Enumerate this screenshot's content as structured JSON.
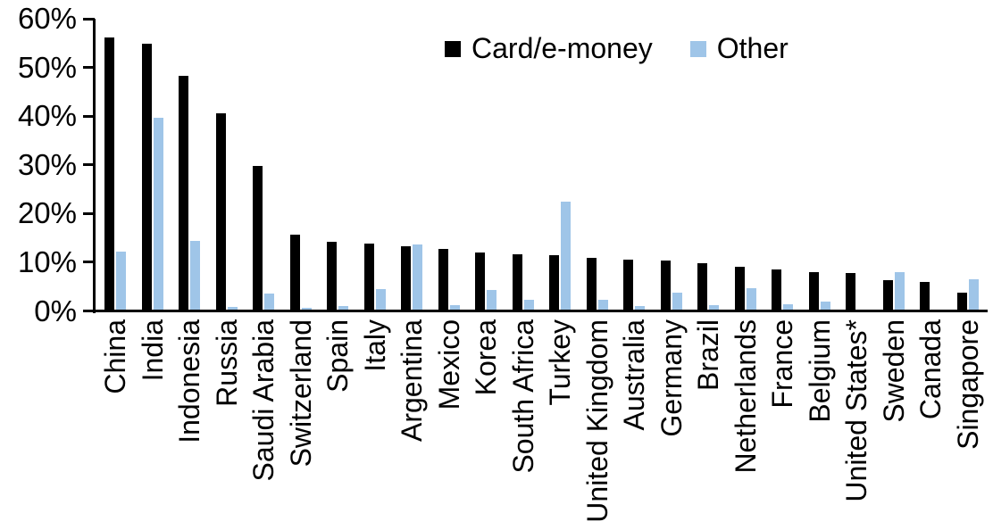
{
  "chart_data": {
    "type": "bar",
    "title": "",
    "xlabel": "",
    "ylabel": "",
    "categories": [
      "China",
      "India",
      "Indonesia",
      "Russia",
      "Saudi Arabia",
      "Switzerland",
      "Spain",
      "Italy",
      "Argentina",
      "Mexico",
      "Korea",
      "South Africa",
      "Turkey",
      "United Kingdom",
      "Australia",
      "Germany",
      "Brazil",
      "Netherlands",
      "France",
      "Belgium",
      "United States*",
      "Sweden",
      "Canada",
      "Singapore"
    ],
    "series": [
      {
        "name": "Card/e-money",
        "color": "#000000",
        "values": [
          56.2,
          55.0,
          48.3,
          40.6,
          29.8,
          15.7,
          14.2,
          14.0,
          13.3,
          12.8,
          12.1,
          11.7,
          11.6,
          11.0,
          10.6,
          10.4,
          9.9,
          9.2,
          8.6,
          8.1,
          7.9,
          6.4,
          6.0,
          3.8
        ]
      },
      {
        "name": "Other",
        "color": "#9FC5E8",
        "values": [
          12.3,
          39.7,
          14.5,
          1.0,
          3.7,
          0.8,
          1.1,
          4.5,
          13.7,
          1.2,
          4.4,
          2.4,
          22.6,
          2.3,
          1.1,
          3.8,
          1.2,
          4.7,
          1.5,
          2.1,
          0.4,
          8.1,
          0.0,
          6.6
        ]
      }
    ],
    "ylim": [
      0,
      60
    ],
    "yticks": [
      {
        "value": 0,
        "label": "0%"
      },
      {
        "value": 10,
        "label": "10%"
      },
      {
        "value": 20,
        "label": "20%"
      },
      {
        "value": 30,
        "label": "30%"
      },
      {
        "value": 40,
        "label": "40%"
      },
      {
        "value": 50,
        "label": "50%"
      },
      {
        "value": 60,
        "label": "60%"
      }
    ],
    "grid": false,
    "legend_position": "top-center"
  },
  "colors": {
    "background": "#FFFFFF",
    "axis": "#000000",
    "card_series": "#000000",
    "other_series": "#9FC5E8"
  }
}
